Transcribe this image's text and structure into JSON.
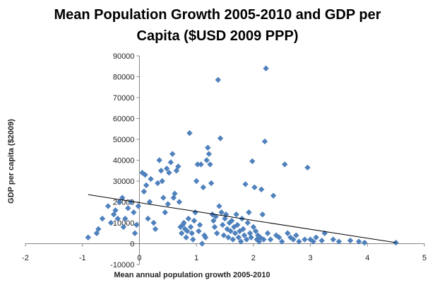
{
  "chart_data": {
    "type": "scatter",
    "title_line1": "Mean Population Growth 2005-2010 and GDP per",
    "title_line2": "Capita ($USD 2009 PPP)",
    "xlabel": "Mean annual population growth 2005-2010",
    "ylabel": "GDP per capita ($2009)",
    "xlim": [
      -2,
      5
    ],
    "ylim": [
      -10000,
      90000
    ],
    "x_ticks": [
      "-2",
      "-1",
      "0",
      "1",
      "2",
      "3",
      "4",
      "5"
    ],
    "y_ticks": [
      "-10000",
      "0",
      "10000",
      "20000",
      "30000",
      "40000",
      "50000",
      "60000",
      "70000",
      "80000",
      "90000"
    ],
    "grid": false,
    "marker_color": "#4f81bd",
    "trendline": {
      "x": [
        -0.9,
        4.5
      ],
      "y": [
        23500,
        500
      ]
    },
    "points": [
      [
        -0.9,
        3000
      ],
      [
        -0.75,
        5000
      ],
      [
        -0.72,
        7000
      ],
      [
        -0.65,
        12000
      ],
      [
        -0.55,
        18000
      ],
      [
        -0.5,
        10000
      ],
      [
        -0.45,
        14000
      ],
      [
        -0.42,
        16000
      ],
      [
        -0.38,
        12000
      ],
      [
        -0.35,
        20000
      ],
      [
        -0.3,
        22000
      ],
      [
        -0.28,
        8000
      ],
      [
        -0.25,
        12000
      ],
      [
        -0.2,
        17000
      ],
      [
        -0.15,
        20000
      ],
      [
        -0.1,
        15000
      ],
      [
        -0.08,
        5000
      ],
      [
        -0.05,
        9000
      ],
      [
        -0.02,
        18000
      ],
      [
        0.05,
        34000
      ],
      [
        0.08,
        25000
      ],
      [
        0.1,
        33000
      ],
      [
        0.12,
        28000
      ],
      [
        0.15,
        12000
      ],
      [
        0.18,
        20000
      ],
      [
        0.2,
        31000
      ],
      [
        0.25,
        10000
      ],
      [
        0.28,
        7000
      ],
      [
        0.32,
        29000
      ],
      [
        0.35,
        40000
      ],
      [
        0.38,
        35000
      ],
      [
        0.4,
        30000
      ],
      [
        0.42,
        22000
      ],
      [
        0.45,
        15000
      ],
      [
        0.48,
        36000
      ],
      [
        0.5,
        19000
      ],
      [
        0.52,
        34000
      ],
      [
        0.55,
        39000
      ],
      [
        0.58,
        43000
      ],
      [
        0.6,
        22000
      ],
      [
        0.62,
        24000
      ],
      [
        0.65,
        35000
      ],
      [
        0.68,
        37000
      ],
      [
        0.7,
        20000
      ],
      [
        0.72,
        8000
      ],
      [
        0.74,
        5000
      ],
      [
        0.76,
        9000
      ],
      [
        0.78,
        10000
      ],
      [
        0.8,
        7000
      ],
      [
        0.82,
        3000
      ],
      [
        0.84,
        6000
      ],
      [
        0.86,
        12000
      ],
      [
        0.88,
        53000
      ],
      [
        0.9,
        8000
      ],
      [
        0.92,
        5000
      ],
      [
        0.94,
        2000
      ],
      [
        0.96,
        11000
      ],
      [
        0.98,
        15000
      ],
      [
        1.0,
        30000
      ],
      [
        1.02,
        38000
      ],
      [
        1.04,
        6000
      ],
      [
        1.06,
        9000
      ],
      [
        1.08,
        38000
      ],
      [
        1.1,
        0
      ],
      [
        1.12,
        27000
      ],
      [
        1.14,
        4000
      ],
      [
        1.16,
        3000
      ],
      [
        1.18,
        40000
      ],
      [
        1.2,
        46000
      ],
      [
        1.22,
        43000
      ],
      [
        1.24,
        38000
      ],
      [
        1.26,
        29000
      ],
      [
        1.28,
        14000
      ],
      [
        1.3,
        11000
      ],
      [
        1.32,
        8000
      ],
      [
        1.34,
        13000
      ],
      [
        1.36,
        5000
      ],
      [
        1.38,
        78500
      ],
      [
        1.4,
        18000
      ],
      [
        1.42,
        50500
      ],
      [
        1.44,
        15000
      ],
      [
        1.46,
        9000
      ],
      [
        1.48,
        4000
      ],
      [
        1.5,
        12000
      ],
      [
        1.52,
        14000
      ],
      [
        1.54,
        7000
      ],
      [
        1.56,
        3000
      ],
      [
        1.58,
        10000
      ],
      [
        1.6,
        6000
      ],
      [
        1.62,
        11000
      ],
      [
        1.64,
        2000
      ],
      [
        1.66,
        8000
      ],
      [
        1.68,
        5000
      ],
      [
        1.7,
        14000
      ],
      [
        1.72,
        9000
      ],
      [
        1.74,
        3000
      ],
      [
        1.76,
        6000
      ],
      [
        1.78,
        1000
      ],
      [
        1.8,
        12000
      ],
      [
        1.82,
        7000
      ],
      [
        1.84,
        4000
      ],
      [
        1.86,
        28500
      ],
      [
        1.88,
        2000
      ],
      [
        1.9,
        10000
      ],
      [
        1.92,
        15000
      ],
      [
        1.94,
        5000
      ],
      [
        1.96,
        3000
      ],
      [
        1.98,
        39500
      ],
      [
        2.0,
        8000
      ],
      [
        2.02,
        27000
      ],
      [
        2.04,
        6000
      ],
      [
        2.06,
        2000
      ],
      [
        2.08,
        4000
      ],
      [
        2.1,
        1000
      ],
      [
        2.12,
        3000
      ],
      [
        2.14,
        26000
      ],
      [
        2.16,
        14000
      ],
      [
        2.18,
        2000
      ],
      [
        2.2,
        49000
      ],
      [
        2.22,
        84000
      ],
      [
        2.25,
        5000
      ],
      [
        2.3,
        2000
      ],
      [
        2.35,
        23000
      ],
      [
        2.4,
        4000
      ],
      [
        2.45,
        3000
      ],
      [
        2.5,
        1000
      ],
      [
        2.55,
        38000
      ],
      [
        2.6,
        5000
      ],
      [
        2.65,
        3000
      ],
      [
        2.7,
        2000
      ],
      [
        2.75,
        4000
      ],
      [
        2.8,
        1000
      ],
      [
        2.9,
        2000
      ],
      [
        2.95,
        36500
      ],
      [
        3.0,
        2000
      ],
      [
        3.05,
        1000
      ],
      [
        3.1,
        3000
      ],
      [
        3.2,
        1500
      ],
      [
        3.25,
        5000
      ],
      [
        3.4,
        2000
      ],
      [
        3.5,
        1000
      ],
      [
        3.7,
        1500
      ],
      [
        3.85,
        1000
      ],
      [
        3.95,
        500
      ],
      [
        4.5,
        500
      ]
    ]
  }
}
